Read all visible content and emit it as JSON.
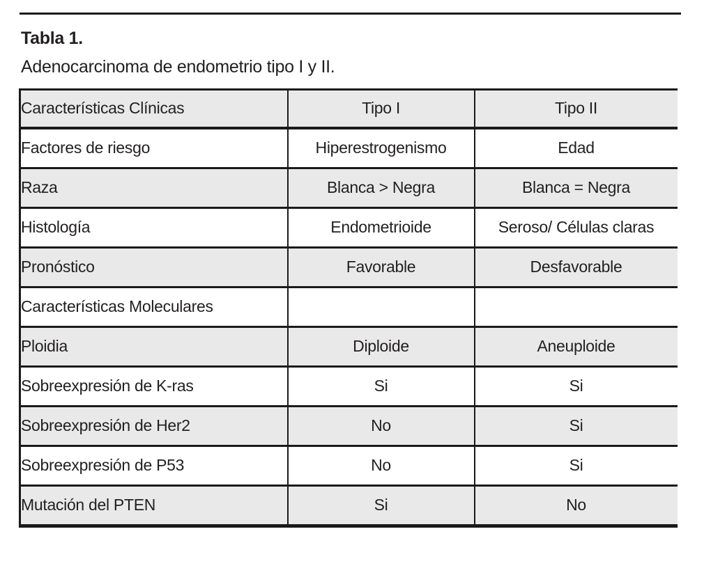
{
  "page": {
    "title": "Tabla 1.",
    "subtitle": "Adenocarcinoma de endometrio tipo I y II."
  },
  "colors": {
    "row_alt": "#e9e9e9",
    "border": "#1a1a1a",
    "text": "#231f20"
  },
  "table": {
    "headers": [
      "Características Clínicas",
      "Tipo I",
      "Tipo II"
    ],
    "rows": [
      {
        "label": "Factores de riesgo",
        "tipo1": "Hiperestrogenismo",
        "tipo2": "Edad"
      },
      {
        "label": "Raza",
        "tipo1": "Blanca > Negra",
        "tipo2": "Blanca = Negra"
      },
      {
        "label": "Histología",
        "tipo1": "Endometrioide",
        "tipo2": "Seroso/ Células claras"
      },
      {
        "label": "Pronóstico",
        "tipo1": "Favorable",
        "tipo2": "Desfavorable"
      },
      {
        "label": "Características Moleculares",
        "tipo1": "",
        "tipo2": ""
      },
      {
        "label": "Ploidia",
        "tipo1": "Diploide",
        "tipo2": "Aneuploide"
      },
      {
        "label": "Sobreexpresión de K-ras",
        "tipo1": "Si",
        "tipo2": "Si"
      },
      {
        "label": "Sobreexpresión de Her2",
        "tipo1": "No",
        "tipo2": "Si"
      },
      {
        "label": "Sobreexpresión de P53",
        "tipo1": "No",
        "tipo2": "Si"
      },
      {
        "label": "Mutación del PTEN",
        "tipo1": "Si",
        "tipo2": "No"
      }
    ]
  }
}
